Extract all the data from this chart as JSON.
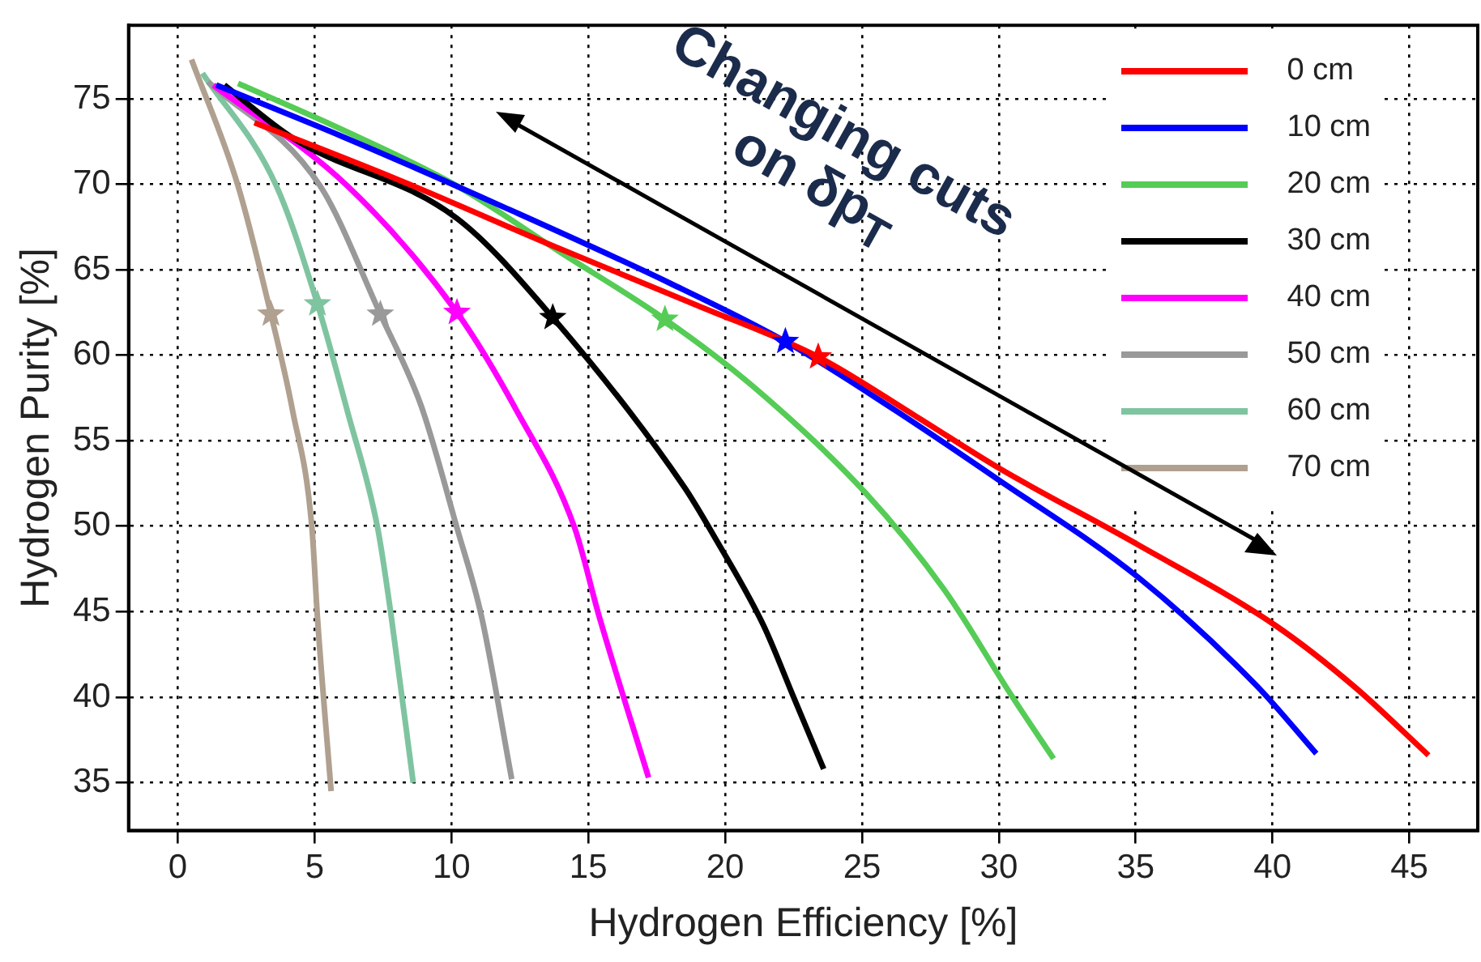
{
  "chart_data": {
    "type": "line",
    "xlabel": "Hydrogen Efficiency [%]",
    "ylabel": "Hydrogen Purity [%]",
    "xlim": [
      -1.8,
      47.5
    ],
    "ylim": [
      32.2,
      79.3
    ],
    "xticks": [
      0,
      5,
      10,
      15,
      20,
      25,
      30,
      35,
      40,
      45
    ],
    "yticks": [
      35,
      40,
      45,
      50,
      55,
      60,
      65,
      70,
      75
    ],
    "grid": true,
    "legend": "top right",
    "line_style": "solid",
    "marker": "none",
    "annotations": [
      "Changing cuts on δp$_{T}$"
    ],
    "series": [
      {
        "name": "0 cm",
        "color": "#ff0000",
        "x": [
          2.8,
          8,
          14,
          19,
          23.4,
          27,
          30,
          35.1,
          40.1,
          43,
          45.7
        ],
        "values": [
          73.6,
          70.3,
          66.2,
          62.9,
          59.9,
          56.4,
          53.4,
          48.9,
          44.2,
          40.6,
          36.6
        ]
      },
      {
        "name": "10 cm",
        "color": "#0000ff",
        "x": [
          1.4,
          6,
          12,
          18,
          22.2,
          26,
          30,
          35.1,
          39.4,
          41.6
        ],
        "values": [
          75.8,
          72.8,
          68.6,
          64.2,
          60.8,
          57.0,
          52.7,
          47.0,
          40.7,
          36.7
        ]
      },
      {
        "name": "20 cm",
        "color": "#55cc55",
        "x": [
          2.2,
          6,
          10.2,
          14,
          17.8,
          21,
          25.1,
          28,
          30.5,
          32
        ],
        "values": [
          75.9,
          73.2,
          69.9,
          66.0,
          62.1,
          58.2,
          52.0,
          46.3,
          40.0,
          36.4
        ]
      },
      {
        "name": "30 cm",
        "color": "#000000",
        "x": [
          1.7,
          4.2,
          10.2,
          13.7,
          18.5,
          19.6,
          21.4,
          22.5,
          23.6
        ],
        "values": [
          75.8,
          72.7,
          68.0,
          62.2,
          52.3,
          49.4,
          44.2,
          40.0,
          35.8
        ]
      },
      {
        "name": "40 cm",
        "color": "#ff00ff",
        "x": [
          1.3,
          6.2,
          10.2,
          12.4,
          14.5,
          15.4,
          17.2
        ],
        "values": [
          75.8,
          69.9,
          62.5,
          56.7,
          49.9,
          44.7,
          35.3
        ]
      },
      {
        "name": "50 cm",
        "color": "#999999",
        "x": [
          1.1,
          5.2,
          7.4,
          8.9,
          10.2,
          11.1,
          12.2
        ],
        "values": [
          76.0,
          69.9,
          62.4,
          57.0,
          49.9,
          44.7,
          35.2
        ]
      },
      {
        "name": "60 cm",
        "color": "#7fc4a0",
        "x": [
          0.9,
          3.6,
          5.1,
          6.2,
          7.3,
          7.8,
          8.6
        ],
        "values": [
          76.5,
          69.9,
          63.0,
          56.7,
          49.9,
          44.7,
          35.0
        ]
      },
      {
        "name": "70 cm",
        "color": "#b0a090",
        "x": [
          0.5,
          2.2,
          3.4,
          4.2,
          4.9,
          5.1,
          5.6
        ],
        "values": [
          77.3,
          69.9,
          62.4,
          56.7,
          49.9,
          44.7,
          34.5
        ]
      },
      {
        "type": "scatter",
        "marker": "star",
        "x": [
          23.4,
          22.2,
          17.8,
          13.7,
          10.2,
          7.4,
          5.1,
          3.4
        ],
        "values": [
          59.9,
          60.8,
          62.1,
          62.2,
          62.5,
          62.4,
          63.0,
          62.4
        ],
        "colors": [
          "#ff0000",
          "#0000ff",
          "#55cc55",
          "#000000",
          "#ff00ff",
          "#999999",
          "#7fc4a0",
          "#b0a090"
        ]
      }
    ]
  }
}
